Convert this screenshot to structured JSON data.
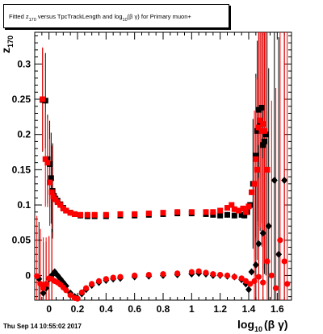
{
  "title": {
    "prefix": "Fitted  z",
    "z_sub": "170",
    "middle": " versus TpcTrackLength and log",
    "log_sub": "10",
    "suffix": "(β γ) for Primary muon+"
  },
  "timestamp": "Thu Sep 14 10:55:02 2017",
  "chart_data": {
    "type": "scatter",
    "title": "Fitted z170 versus TpcTrackLength and log10(β γ) for Primary muon+",
    "xlabel": "log10(β γ)",
    "xlabel_main": "log",
    "xlabel_sub": "10",
    "xlabel_suffix": "(β γ)",
    "ylabel_main": "z",
    "ylabel_sub": "170",
    "xlim": [
      -0.1,
      1.7
    ],
    "ylim": [
      -0.035,
      0.345
    ],
    "xticks": [
      0,
      0.2,
      0.4,
      0.6,
      0.8,
      1,
      1.2,
      1.4,
      1.6
    ],
    "xtick_labels": [
      "0",
      "0.2",
      "0.4",
      "0.6",
      "0.8",
      "1",
      "1.2",
      "1.4",
      "1.6"
    ],
    "yticks": [
      0,
      0.05,
      0.1,
      0.15,
      0.2,
      0.25,
      0.3
    ],
    "ytick_labels": [
      "0",
      "0.05",
      "0.1",
      "0.15",
      "0.2",
      "0.25",
      "0.3"
    ],
    "colors": {
      "series_black": "#000000",
      "series_red": "#ff0000"
    },
    "series": [
      {
        "marker": "square",
        "color": "#000000",
        "points": [
          [
            -0.045,
            0.249
          ],
          [
            -0.025,
            0.248
          ],
          [
            -0.01,
            0.165
          ],
          [
            0.005,
            0.158
          ],
          [
            0.015,
            0.138
          ],
          [
            0.025,
            0.12
          ],
          [
            0.035,
            0.113
          ],
          [
            0.045,
            0.109
          ],
          [
            0.06,
            0.106
          ],
          [
            0.08,
            0.101
          ],
          [
            0.1,
            0.096
          ],
          [
            0.12,
            0.092
          ],
          [
            0.15,
            0.089
          ],
          [
            0.18,
            0.087
          ],
          [
            0.22,
            0.085
          ],
          [
            0.27,
            0.084
          ],
          [
            0.32,
            0.084
          ],
          [
            0.4,
            0.084
          ],
          [
            0.5,
            0.085
          ],
          [
            0.6,
            0.085
          ],
          [
            0.7,
            0.086
          ],
          [
            0.8,
            0.087
          ],
          [
            0.9,
            0.088
          ],
          [
            1.0,
            0.088
          ],
          [
            1.1,
            0.087
          ],
          [
            1.15,
            0.086
          ],
          [
            1.2,
            0.085
          ],
          [
            1.25,
            0.086
          ],
          [
            1.3,
            0.085
          ],
          [
            1.35,
            0.086
          ],
          [
            1.37,
            0.085
          ],
          [
            1.39,
            0.09
          ],
          [
            1.41,
            0.1
          ],
          [
            1.43,
            0.13
          ],
          [
            1.45,
            0.17
          ],
          [
            1.46,
            0.205
          ],
          [
            1.47,
            0.235
          ],
          [
            1.48,
            0.215
          ],
          [
            1.49,
            0.238
          ],
          [
            1.5,
            0.185
          ],
          [
            1.51,
            0.19
          ],
          [
            1.52,
            0.2
          ]
        ]
      },
      {
        "marker": "square",
        "color": "#ff0000",
        "points": [
          [
            -0.045,
            0.25
          ],
          [
            -0.025,
            0.165
          ],
          [
            -0.01,
            0.16
          ],
          [
            0.005,
            0.132
          ],
          [
            0.02,
            0.118
          ],
          [
            0.03,
            0.112
          ],
          [
            0.045,
            0.108
          ],
          [
            0.06,
            0.104
          ],
          [
            0.08,
            0.1
          ],
          [
            0.1,
            0.095
          ],
          [
            0.12,
            0.092
          ],
          [
            0.15,
            0.089
          ],
          [
            0.18,
            0.087
          ],
          [
            0.22,
            0.086
          ],
          [
            0.27,
            0.086
          ],
          [
            0.32,
            0.086
          ],
          [
            0.4,
            0.086
          ],
          [
            0.5,
            0.087
          ],
          [
            0.6,
            0.087
          ],
          [
            0.7,
            0.088
          ],
          [
            0.8,
            0.089
          ],
          [
            0.9,
            0.09
          ],
          [
            1.0,
            0.09
          ],
          [
            1.1,
            0.09
          ],
          [
            1.15,
            0.09
          ],
          [
            1.2,
            0.092
          ],
          [
            1.25,
            0.096
          ],
          [
            1.28,
            0.1
          ],
          [
            1.3,
            0.094
          ],
          [
            1.33,
            0.092
          ],
          [
            1.36,
            0.095
          ],
          [
            1.38,
            0.09
          ],
          [
            1.4,
            0.098
          ],
          [
            1.42,
            0.118
          ],
          [
            1.44,
            0.13
          ],
          [
            1.45,
            0.165
          ],
          [
            1.46,
            0.15
          ],
          [
            1.47,
            0.21
          ],
          [
            1.48,
            0.22
          ],
          [
            1.49,
            0.205
          ],
          [
            1.5,
            0.215
          ],
          [
            1.51,
            0.205
          ],
          [
            1.53,
            0.15
          ]
        ]
      },
      {
        "marker": "diamond",
        "color": "#000000",
        "points": [
          [
            -0.07,
            -0.005
          ],
          [
            -0.04,
            -0.025
          ],
          [
            -0.02,
            -0.018
          ],
          [
            0.0,
            -0.005
          ],
          [
            0.02,
            0.0
          ],
          [
            0.04,
            0.005
          ],
          [
            0.06,
            0.0
          ],
          [
            0.08,
            -0.005
          ],
          [
            0.1,
            -0.01
          ],
          [
            0.12,
            -0.015
          ],
          [
            0.15,
            -0.025
          ],
          [
            0.18,
            -0.03
          ],
          [
            0.2,
            -0.032
          ],
          [
            0.23,
            -0.026
          ],
          [
            0.26,
            -0.02
          ],
          [
            0.3,
            -0.014
          ],
          [
            0.35,
            -0.01
          ],
          [
            0.4,
            -0.007
          ],
          [
            0.45,
            -0.005
          ],
          [
            0.5,
            -0.004
          ],
          [
            0.6,
            -0.002
          ],
          [
            0.7,
            -0.001
          ],
          [
            0.8,
            0.0
          ],
          [
            0.9,
            0.001
          ],
          [
            1.0,
            0.002
          ],
          [
            1.05,
            0.003
          ],
          [
            1.1,
            0.002
          ],
          [
            1.15,
            0.0
          ],
          [
            1.2,
            0.0
          ],
          [
            1.25,
            -0.001
          ],
          [
            1.3,
            -0.002
          ],
          [
            1.35,
            -0.006
          ],
          [
            1.38,
            -0.012
          ],
          [
            1.4,
            -0.02
          ],
          [
            1.42,
            0.005
          ],
          [
            1.45,
            0.015
          ],
          [
            1.47,
            0.045
          ],
          [
            1.5,
            0.06
          ],
          [
            1.54,
            0.07
          ],
          [
            1.58,
            0.135
          ],
          [
            1.61,
            0.03
          ],
          [
            1.65,
            0.135
          ]
        ]
      },
      {
        "marker": "circle",
        "color": "#ff0000",
        "points": [
          [
            -0.085,
            -0.001
          ],
          [
            -0.06,
            -0.012
          ],
          [
            -0.04,
            -0.018
          ],
          [
            -0.02,
            -0.012
          ],
          [
            0.0,
            -0.004
          ],
          [
            0.02,
            -0.005
          ],
          [
            0.04,
            -0.008
          ],
          [
            0.06,
            -0.01
          ],
          [
            0.08,
            -0.013
          ],
          [
            0.1,
            -0.017
          ],
          [
            0.12,
            -0.021
          ],
          [
            0.15,
            -0.028
          ],
          [
            0.18,
            -0.032
          ],
          [
            0.2,
            -0.033
          ],
          [
            0.23,
            -0.024
          ],
          [
            0.26,
            -0.018
          ],
          [
            0.3,
            -0.012
          ],
          [
            0.35,
            -0.008
          ],
          [
            0.4,
            -0.005
          ],
          [
            0.45,
            -0.003
          ],
          [
            0.5,
            -0.002
          ],
          [
            0.6,
            0.0
          ],
          [
            0.7,
            0.001
          ],
          [
            0.8,
            0.002
          ],
          [
            0.9,
            0.003
          ],
          [
            1.0,
            0.005
          ],
          [
            1.05,
            0.006
          ],
          [
            1.1,
            0.004
          ],
          [
            1.15,
            0.002
          ],
          [
            1.2,
            0.001
          ],
          [
            1.25,
            0.0
          ],
          [
            1.3,
            -0.002
          ],
          [
            1.35,
            -0.004
          ],
          [
            1.38,
            -0.008
          ],
          [
            1.41,
            -0.012
          ],
          [
            1.44,
            -0.008
          ],
          [
            1.47,
            -0.002
          ],
          [
            1.5,
            -0.01
          ],
          [
            1.53,
            0.02
          ],
          [
            1.56,
            0.0
          ],
          [
            1.59,
            -0.018
          ],
          [
            1.62,
            0.05
          ],
          [
            1.65,
            0.02
          ],
          [
            1.67,
            -0.012
          ]
        ]
      }
    ]
  }
}
